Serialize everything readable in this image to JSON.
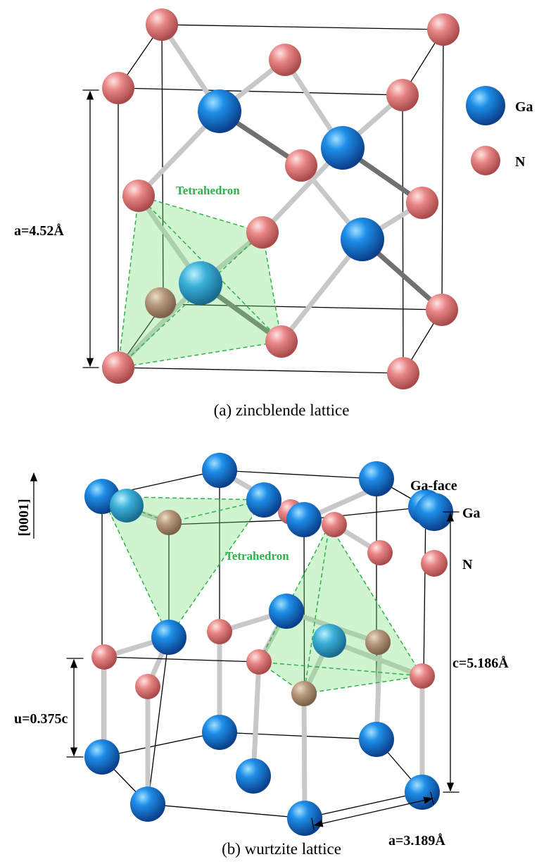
{
  "panels": [
    {
      "caption": "(a) zincblende lattice",
      "legend": [
        "Ga",
        "N"
      ],
      "tetrahedron_label": "Tetrahedron",
      "dimension_a": "a=4.52Å"
    },
    {
      "caption": "(b) wurtzite lattice",
      "legend": [
        "Ga",
        "N"
      ],
      "tetrahedron_label": "Tetrahedron",
      "face_label": "Ga-face",
      "direction_label": "[0001]",
      "dimension_c": "c=5.186Å",
      "dimension_u": "u=0.375c",
      "dimension_a": "a=3.189Å"
    }
  ]
}
